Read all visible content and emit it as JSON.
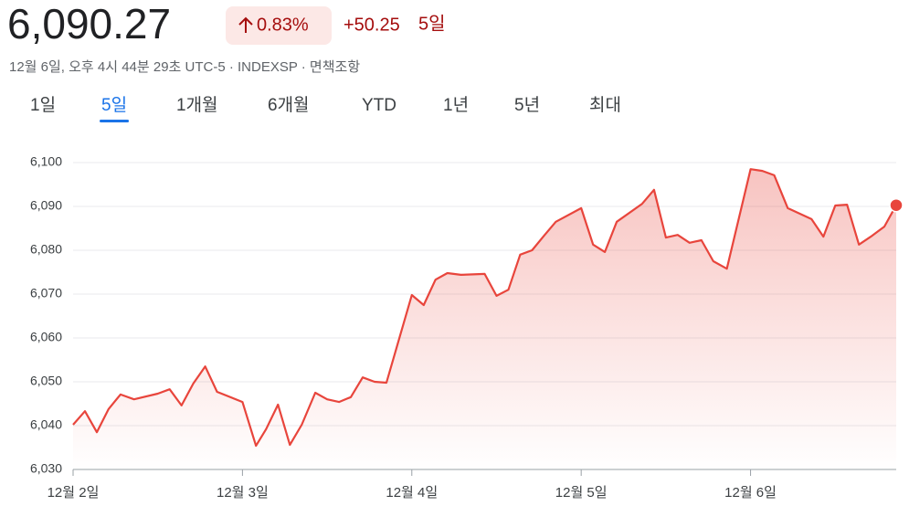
{
  "header": {
    "price": "6,090.27",
    "change_percent": "0.83%",
    "change_value": "+50.25",
    "change_period": "5일",
    "subtitle": "12월 6일, 오후 4시 44분 29초 UTC-5 · INDEXSP · 면책조항"
  },
  "tabs": [
    {
      "label": "1일",
      "selected": false
    },
    {
      "label": "5일",
      "selected": true
    },
    {
      "label": "1개월",
      "selected": false
    },
    {
      "label": "6개월",
      "selected": false
    },
    {
      "label": "YTD",
      "selected": false
    },
    {
      "label": "1년",
      "selected": false
    },
    {
      "label": "5년",
      "selected": false
    },
    {
      "label": "최대",
      "selected": false
    }
  ],
  "chart_data": {
    "type": "line",
    "x": [
      0,
      0.07,
      0.14,
      0.21,
      0.28,
      0.36,
      0.5,
      0.57,
      0.64,
      0.71,
      0.78,
      0.85,
      1.0,
      1.08,
      1.14,
      1.21,
      1.28,
      1.35,
      1.43,
      1.5,
      1.57,
      1.64,
      1.71,
      1.78,
      1.85,
      2.0,
      2.07,
      2.14,
      2.21,
      2.29,
      2.43,
      2.5,
      2.57,
      2.64,
      2.71,
      2.78,
      2.85,
      3.0,
      3.07,
      3.14,
      3.21,
      3.36,
      3.43,
      3.5,
      3.57,
      3.64,
      3.71,
      3.78,
      3.86,
      4.0,
      4.07,
      4.14,
      4.22,
      4.36,
      4.43,
      4.5,
      4.57,
      4.64,
      4.71,
      4.79,
      4.86
    ],
    "series": [
      {
        "color": "#e8453c",
        "values": [
          6040.2,
          6043.3,
          6038.5,
          6043.8,
          6047.1,
          6046.0,
          6047.3,
          6048.3,
          6044.6,
          6049.6,
          6053.5,
          6047.7,
          6045.4,
          6035.4,
          6039.2,
          6044.8,
          6035.6,
          6040.2,
          6047.5,
          6046.0,
          6045.4,
          6046.5,
          6051.0,
          6050.0,
          6049.8,
          6069.8,
          6067.5,
          6073.3,
          6074.8,
          6074.4,
          6074.6,
          6069.6,
          6071.0,
          6079.0,
          6080.0,
          6083.3,
          6086.5,
          6089.6,
          6081.3,
          6079.6,
          6086.5,
          6090.6,
          6093.8,
          6082.9,
          6083.5,
          6081.7,
          6082.3,
          6077.5,
          6075.8,
          6098.5,
          6098.1,
          6097.1,
          6089.6,
          6087.1,
          6083.1,
          6090.2,
          6090.4,
          6081.3,
          6083.1,
          6085.4,
          6090.27
        ]
      }
    ],
    "xlim": [
      0,
      4.86
    ],
    "xticks": [
      {
        "value": 0,
        "label": "12월 2일"
      },
      {
        "value": 1,
        "label": "12월 3일"
      },
      {
        "value": 2,
        "label": "12월 4일"
      },
      {
        "value": 3,
        "label": "12월 5일"
      },
      {
        "value": 4,
        "label": "12월 6일"
      }
    ],
    "ylim": [
      6030,
      6105
    ],
    "yticks": [
      {
        "value": 6030,
        "label": "6,030"
      },
      {
        "value": 6040,
        "label": "6,040"
      },
      {
        "value": 6050,
        "label": "6,050"
      },
      {
        "value": 6060,
        "label": "6,060"
      },
      {
        "value": 6070,
        "label": "6,070"
      },
      {
        "value": 6080,
        "label": "6,080"
      },
      {
        "value": 6090,
        "label": "6,090"
      },
      {
        "value": 6100,
        "label": "6,100"
      }
    ],
    "grid": true,
    "fill_area": true,
    "end_marker": true
  }
}
